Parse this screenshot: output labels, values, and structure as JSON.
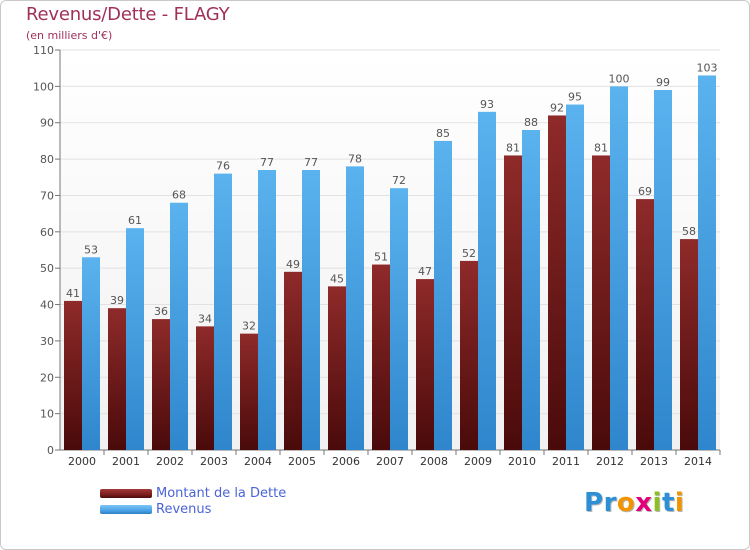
{
  "title": "Revenus/Dette - FLAGY",
  "subtitle": "(en milliers d'€)",
  "legend": {
    "debt_label": "Montant de la Dette",
    "revenue_label": "Revenus"
  },
  "logo": {
    "text": "Proxiti",
    "letters": [
      {
        "char": "P",
        "color": "#2d8fd6"
      },
      {
        "char": "r",
        "color": "#2d8fd6"
      },
      {
        "char": "o",
        "color": "#f29400"
      },
      {
        "char": "x",
        "color": "#e2007a"
      },
      {
        "char": "i",
        "color": "#8cbf26"
      },
      {
        "char": "t",
        "color": "#2d8fd6"
      },
      {
        "char": "i",
        "color": "#f29400"
      }
    ]
  },
  "colors": {
    "debt": "#7a1f1f",
    "revenue": "#4aa3e6",
    "title": "#a0305a",
    "grid": "#e2e2e2",
    "label": "#555555"
  },
  "chart_data": {
    "type": "bar",
    "title": "Revenus/Dette - FLAGY",
    "subtitle": "(en milliers d'€)",
    "categories": [
      "2000",
      "2001",
      "2002",
      "2003",
      "2004",
      "2005",
      "2006",
      "2007",
      "2008",
      "2009",
      "2010",
      "2011",
      "2012",
      "2013",
      "2014"
    ],
    "series": [
      {
        "name": "Montant de la Dette",
        "values": [
          41,
          39,
          36,
          34,
          32,
          49,
          45,
          51,
          47,
          52,
          81,
          92,
          81,
          69,
          58
        ]
      },
      {
        "name": "Revenus",
        "values": [
          53,
          61,
          68,
          76,
          77,
          77,
          78,
          72,
          85,
          93,
          88,
          95,
          100,
          99,
          103
        ]
      }
    ],
    "ylim": [
      0,
      110
    ],
    "yticks": [
      0,
      10,
      20,
      30,
      40,
      50,
      60,
      70,
      80,
      90,
      100,
      110
    ],
    "grid": true,
    "legend_position": "bottom-left"
  }
}
